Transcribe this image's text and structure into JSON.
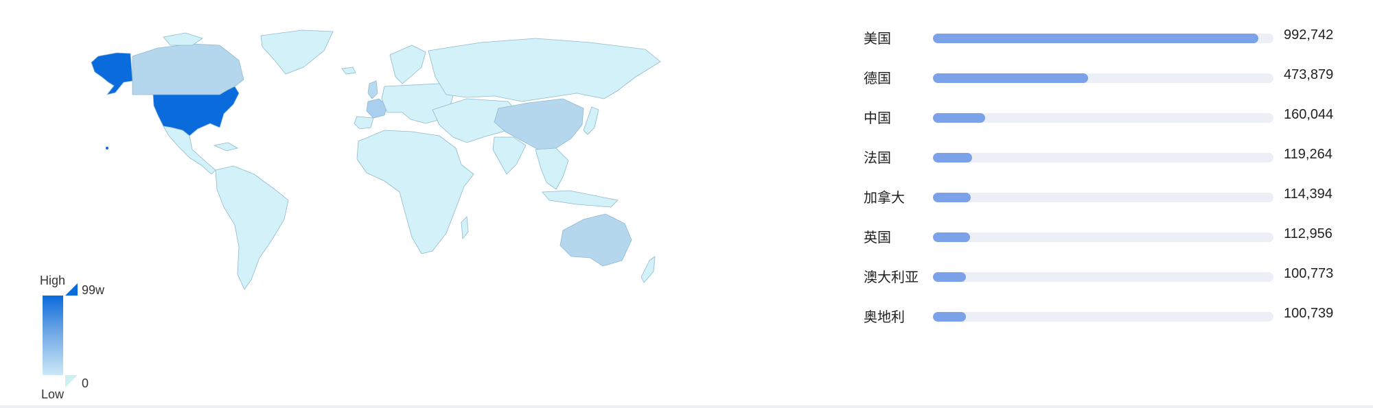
{
  "legend": {
    "high_label": "High",
    "low_label": "Low",
    "max_label": "99w",
    "min_label": "0",
    "colors": {
      "high": "#0a6bdc",
      "mid": "#6da6e4",
      "low": "#cbe8f7",
      "min": "#cdf0f3"
    }
  },
  "map": {
    "type": "choropleth",
    "colors": {
      "base": "#d2f1f8",
      "border": "#8fb9cf",
      "no_data": "#e8e8e8",
      "max": "#0a6bdc"
    }
  },
  "ranking": {
    "max_value": 992742,
    "bar_color": "#7ba1e8",
    "track_color": "#eceff6",
    "items": [
      {
        "name": "美国",
        "value": 992742,
        "display": "992,742"
      },
      {
        "name": "德国",
        "value": 473879,
        "display": "473,879"
      },
      {
        "name": "中国",
        "value": 160044,
        "display": "160,044"
      },
      {
        "name": "法国",
        "value": 119264,
        "display": "119,264"
      },
      {
        "name": "加拿大",
        "value": 114394,
        "display": "114,394"
      },
      {
        "name": "英国",
        "value": 112956,
        "display": "112,956"
      },
      {
        "name": "澳大利亚",
        "value": 100773,
        "display": "100,773"
      },
      {
        "name": "奥地利",
        "value": 100739,
        "display": "100,739"
      }
    ]
  },
  "chart_data": [
    {
      "type": "map",
      "legend": {
        "high": "High",
        "low": "Low",
        "max": "99w",
        "min": "0"
      },
      "regions_highlighted": [
        "美国",
        "德国",
        "中国",
        "法国",
        "加拿大",
        "英国",
        "澳大利亚",
        "奥地利"
      ]
    },
    {
      "type": "bar",
      "orientation": "horizontal",
      "categories": [
        "美国",
        "德国",
        "中国",
        "法国",
        "加拿大",
        "英国",
        "澳大利亚",
        "奥地利"
      ],
      "values": [
        992742,
        473879,
        160044,
        119264,
        114394,
        112956,
        100773,
        100739
      ]
    }
  ]
}
